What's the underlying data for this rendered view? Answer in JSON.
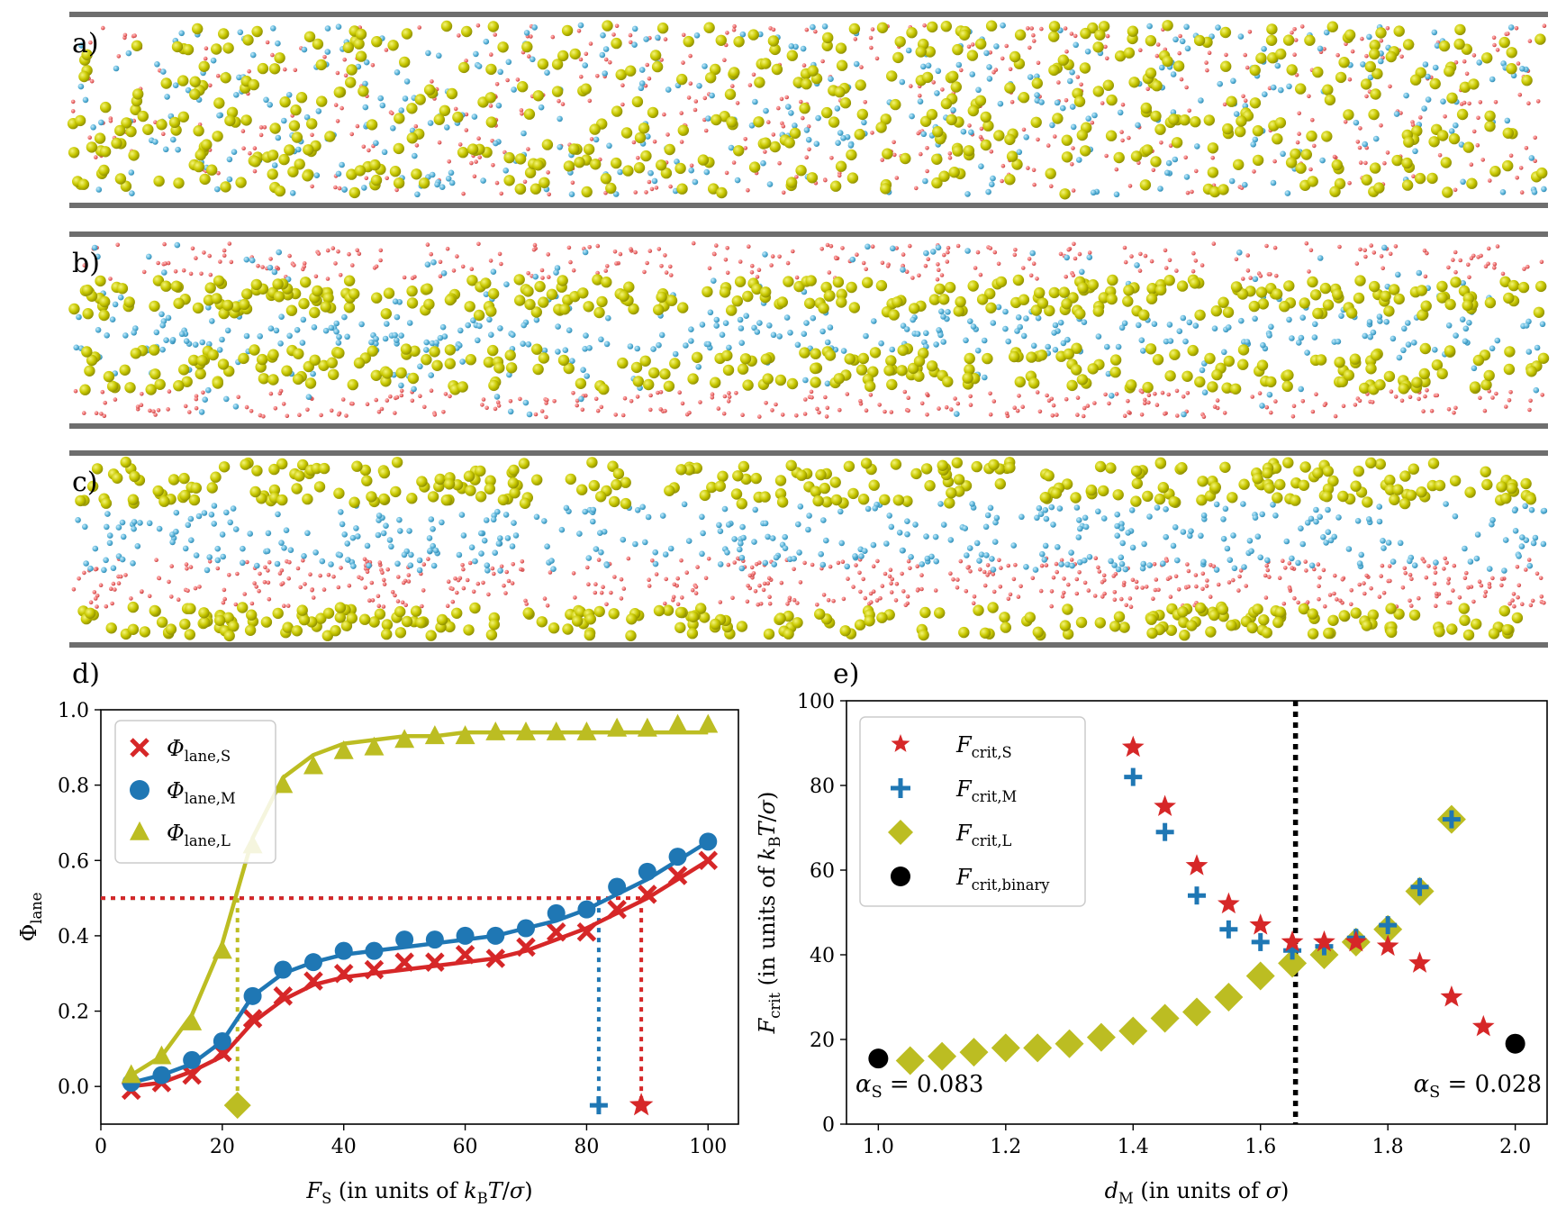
{
  "panels": {
    "a": "a)",
    "b": "b)",
    "c": "c)",
    "d": "d)",
    "e": "e)"
  },
  "colors": {
    "small": "#d62728",
    "medium": "#1f77b4",
    "large": "#bcbd22",
    "binary": "#000000",
    "snap_small": "#ee6b6b",
    "snap_medium": "#5ab4da",
    "snap_large": "#c8c800",
    "wall": "#6e6e6e"
  },
  "chart_data": [
    {
      "id": "d",
      "type": "line",
      "xlabel": "F_S (in units of k_BT/σ)",
      "ylabel": "Φ_lane",
      "xlim": [
        0,
        105
      ],
      "ylim": [
        -0.1,
        1.0
      ],
      "xticks": [
        "0",
        "20",
        "40",
        "60",
        "80",
        "100"
      ],
      "yticks": [
        "0.0",
        "0.2",
        "0.4",
        "0.6",
        "0.8",
        "1.0"
      ],
      "legend_position": "top-left",
      "series": [
        {
          "name": "Φ_lane,S",
          "color_key": "small",
          "marker": "x",
          "x": [
            5,
            10,
            15,
            20,
            25,
            30,
            35,
            40,
            45,
            50,
            55,
            60,
            65,
            70,
            75,
            80,
            85,
            90,
            95,
            100
          ],
          "y": [
            -0.01,
            0.01,
            0.03,
            0.09,
            0.18,
            0.24,
            0.28,
            0.3,
            0.31,
            0.33,
            0.33,
            0.35,
            0.34,
            0.37,
            0.41,
            0.41,
            0.47,
            0.51,
            0.56,
            0.6
          ],
          "fit_y": [
            0.0,
            0.01,
            0.04,
            0.08,
            0.17,
            0.23,
            0.27,
            0.29,
            0.3,
            0.31,
            0.32,
            0.33,
            0.34,
            0.36,
            0.39,
            0.42,
            0.46,
            0.5,
            0.55,
            0.6
          ]
        },
        {
          "name": "Φ_lane,M",
          "color_key": "medium",
          "marker": "circle",
          "x": [
            5,
            10,
            15,
            20,
            25,
            30,
            35,
            40,
            45,
            50,
            55,
            60,
            65,
            70,
            75,
            80,
            85,
            90,
            95,
            100
          ],
          "y": [
            0.01,
            0.03,
            0.07,
            0.12,
            0.24,
            0.31,
            0.33,
            0.36,
            0.36,
            0.39,
            0.39,
            0.4,
            0.4,
            0.42,
            0.46,
            0.47,
            0.53,
            0.57,
            0.61,
            0.65
          ],
          "fit_y": [
            0.01,
            0.03,
            0.06,
            0.12,
            0.24,
            0.3,
            0.33,
            0.35,
            0.36,
            0.37,
            0.38,
            0.39,
            0.4,
            0.42,
            0.44,
            0.47,
            0.51,
            0.55,
            0.6,
            0.65
          ]
        },
        {
          "name": "Φ_lane,L",
          "color_key": "large",
          "marker": "triangle",
          "x": [
            5,
            10,
            15,
            20,
            25,
            30,
            35,
            40,
            45,
            50,
            55,
            60,
            65,
            70,
            75,
            80,
            85,
            90,
            95,
            100
          ],
          "y": [
            0.03,
            0.08,
            0.17,
            0.36,
            0.64,
            0.8,
            0.85,
            0.89,
            0.9,
            0.92,
            0.93,
            0.93,
            0.94,
            0.94,
            0.94,
            0.94,
            0.95,
            0.95,
            0.96,
            0.96
          ],
          "fit_y": [
            0.03,
            0.08,
            0.19,
            0.38,
            0.66,
            0.82,
            0.88,
            0.91,
            0.92,
            0.93,
            0.93,
            0.94,
            0.94,
            0.94,
            0.94,
            0.94,
            0.94,
            0.94,
            0.94,
            0.94
          ]
        }
      ],
      "threshold": {
        "y": 0.5,
        "crossings": [
          {
            "color_key": "large",
            "x": 22.5,
            "marker": "diamond",
            "marker_y": -0.05
          },
          {
            "color_key": "medium",
            "x": 82,
            "marker": "plus",
            "marker_y": -0.05
          },
          {
            "color_key": "small",
            "x": 89,
            "marker": "star",
            "marker_y": -0.05
          }
        ]
      }
    },
    {
      "id": "e",
      "type": "scatter",
      "xlabel": "d_M (in units of σ)",
      "ylabel": "F_crit (in units of k_BT/σ)",
      "xlim": [
        0.95,
        2.05
      ],
      "ylim": [
        0,
        100
      ],
      "xticks": [
        "1.0",
        "1.2",
        "1.4",
        "1.6",
        "1.8",
        "2.0"
      ],
      "yticks": [
        "0",
        "20",
        "40",
        "60",
        "80",
        "100"
      ],
      "legend_position": "top-left",
      "vline_x": 1.655,
      "annotations": [
        "α_S = 0.083",
        "α_S = 0.028"
      ],
      "series": [
        {
          "name": "F_crit,S",
          "color_key": "small",
          "marker": "star",
          "x": [
            1.4,
            1.45,
            1.5,
            1.55,
            1.6,
            1.65,
            1.7,
            1.75,
            1.8,
            1.85,
            1.9,
            1.95
          ],
          "y": [
            89,
            75,
            61,
            52,
            47,
            43,
            43,
            43,
            42,
            38,
            30,
            23
          ]
        },
        {
          "name": "F_crit,M",
          "color_key": "medium",
          "marker": "plus",
          "x": [
            1.4,
            1.45,
            1.5,
            1.55,
            1.6,
            1.65,
            1.7,
            1.75,
            1.8,
            1.85,
            1.9
          ],
          "y": [
            82,
            69,
            54,
            46,
            43,
            41,
            42,
            44,
            47,
            56,
            72
          ]
        },
        {
          "name": "F_crit,L",
          "color_key": "large",
          "marker": "diamond",
          "x": [
            1.05,
            1.1,
            1.15,
            1.2,
            1.25,
            1.3,
            1.35,
            1.4,
            1.45,
            1.5,
            1.55,
            1.6,
            1.65,
            1.7,
            1.75,
            1.8,
            1.85,
            1.9
          ],
          "y": [
            15,
            16,
            17,
            18,
            18,
            19,
            20.5,
            22,
            25,
            26.5,
            30,
            35,
            38,
            40,
            43,
            46,
            55,
            72
          ]
        },
        {
          "name": "F_crit,binary",
          "color_key": "binary",
          "marker": "circle",
          "x": [
            1.0,
            2.0
          ],
          "y": [
            15.5,
            19
          ]
        }
      ]
    }
  ]
}
